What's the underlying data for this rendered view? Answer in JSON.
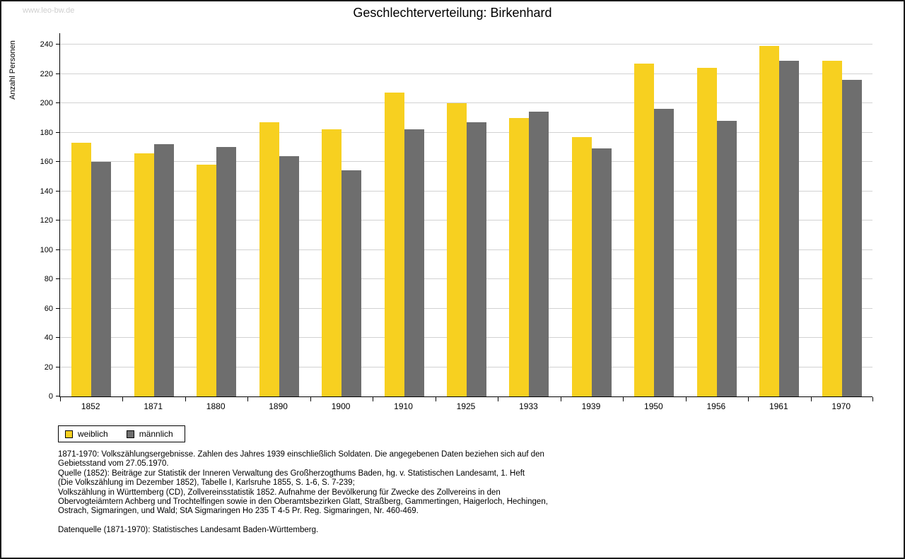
{
  "watermark": "www.leo-bw.de",
  "chart_data": {
    "type": "bar",
    "title": "Geschlechterverteilung: Birkenhard",
    "xlabel": "",
    "ylabel": "Anzahl Personen",
    "ylim": [
      0,
      240
    ],
    "ytick_step": 20,
    "grid": true,
    "legend_position": "bottom-left",
    "categories": [
      "1852",
      "1871",
      "1880",
      "1890",
      "1900",
      "1910",
      "1925",
      "1933",
      "1939",
      "1950",
      "1956",
      "1961",
      "1970"
    ],
    "series": [
      {
        "name": "weiblich",
        "color": "#F7D020",
        "values": [
          173,
          166,
          158,
          187,
          182,
          207,
          200,
          190,
          177,
          227,
          224,
          239,
          229
        ]
      },
      {
        "name": "männlich",
        "color": "#6E6E6E",
        "values": [
          160,
          172,
          170,
          164,
          154,
          182,
          187,
          194,
          169,
          196,
          188,
          229,
          216
        ]
      }
    ]
  },
  "footer": {
    "notes": [
      "1871-1970: Volkszählungsergebnisse. Zahlen des Jahres 1939 einschließlich Soldaten. Die angegebenen Daten beziehen sich auf den",
      "Gebietsstand vom 27.05.1970.",
      "Quelle (1852): Beiträge zur Statistik der Inneren Verwaltung des Großherzogthums Baden, hg. v. Statistischen Landesamt, 1. Heft",
      "(Die Volkszählung im Dezember 1852), Tabelle I, Karlsruhe 1855, S. 1-6, S. 7-239;",
      "Volkszählung in Württemberg (CD), Zollvereinsstatistik 1852. Aufnahme der Bevölkerung für Zwecke des Zollvereins in den",
      "Obervogteiämtern Achberg und Trochtelfingen sowie in den Oberamtsbezirken Glatt, Straßberg, Gammertingen, Haigerloch, Hechingen,",
      "Ostrach, Sigmaringen, und Wald; StA Sigmaringen Ho 235 T 4-5 Pr. Reg. Sigmaringen, Nr. 460-469.",
      "",
      "Datenquelle (1871-1970): Statistisches Landesamt Baden-Württemberg."
    ]
  }
}
